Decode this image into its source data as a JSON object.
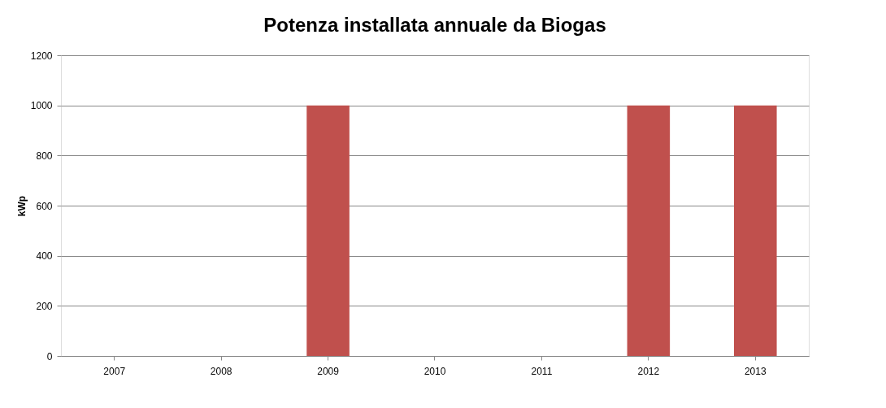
{
  "chart_data": {
    "type": "bar",
    "title": "Potenza installata annuale da Biogas",
    "ylabel": "kWp",
    "categories": [
      "2007",
      "2008",
      "2009",
      "2010",
      "2011",
      "2012",
      "2013"
    ],
    "values": [
      0,
      0,
      1000,
      0,
      0,
      1000,
      1000
    ],
    "color": "#c0504d",
    "ylim": [
      0,
      1200
    ],
    "yticks": [
      0,
      200,
      400,
      600,
      800,
      1000,
      1200
    ],
    "grid": "y"
  }
}
